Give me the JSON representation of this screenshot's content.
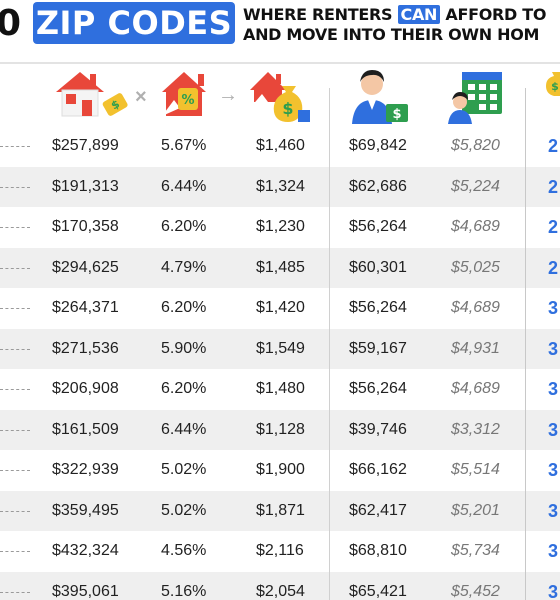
{
  "header": {
    "number_fragment": "0",
    "title_box": "ZIP CODES",
    "line1_pre": "WHERE RENTERS ",
    "line1_highlight": "CAN",
    "line1_post": " AFFORD TO",
    "line2": "AND MOVE INTO THEIR OWN HOM"
  },
  "icons": {
    "col1": "house-with-price-tag-icon",
    "operator_times": "×",
    "col2": "house-with-percent-tag-icon",
    "operator_arrow": "→",
    "col3": "house-with-money-bag-icon",
    "col4": "person-with-money-icon",
    "col5": "person-with-calendar-icon"
  },
  "colors": {
    "accent": "#2f6fde",
    "house_red": "#e8473a",
    "tag_yellow": "#f2c12e",
    "bag_green": "#2e9e4f"
  },
  "rows": [
    {
      "price": "$257,899",
      "rate": "5.67%",
      "payment": "$1,460",
      "income": "$69,842",
      "monthly": "$5,820",
      "last": "2"
    },
    {
      "price": "$191,313",
      "rate": "6.44%",
      "payment": "$1,324",
      "income": "$62,686",
      "monthly": "$5,224",
      "last": "2"
    },
    {
      "price": "$170,358",
      "rate": "6.20%",
      "payment": "$1,230",
      "income": "$56,264",
      "monthly": "$4,689",
      "last": "2"
    },
    {
      "price": "$294,625",
      "rate": "4.79%",
      "payment": "$1,485",
      "income": "$60,301",
      "monthly": "$5,025",
      "last": "2"
    },
    {
      "price": "$264,371",
      "rate": "6.20%",
      "payment": "$1,420",
      "income": "$56,264",
      "monthly": "$4,689",
      "last": "3"
    },
    {
      "price": "$271,536",
      "rate": "5.90%",
      "payment": "$1,549",
      "income": "$59,167",
      "monthly": "$4,931",
      "last": "3"
    },
    {
      "price": "$206,908",
      "rate": "6.20%",
      "payment": "$1,480",
      "income": "$56,264",
      "monthly": "$4,689",
      "last": "3"
    },
    {
      "price": "$161,509",
      "rate": "6.44%",
      "payment": "$1,128",
      "income": "$39,746",
      "monthly": "$3,312",
      "last": "3"
    },
    {
      "price": "$322,939",
      "rate": "5.02%",
      "payment": "$1,900",
      "income": "$66,162",
      "monthly": "$5,514",
      "last": "3"
    },
    {
      "price": "$359,495",
      "rate": "5.02%",
      "payment": "$1,871",
      "income": "$62,417",
      "monthly": "$5,201",
      "last": "3"
    },
    {
      "price": "$432,324",
      "rate": "4.56%",
      "payment": "$2,116",
      "income": "$68,810",
      "monthly": "$5,734",
      "last": "3"
    },
    {
      "price": "$395,061",
      "rate": "5.16%",
      "payment": "$2,054",
      "income": "$65,421",
      "monthly": "$5,452",
      "last": "3"
    }
  ]
}
